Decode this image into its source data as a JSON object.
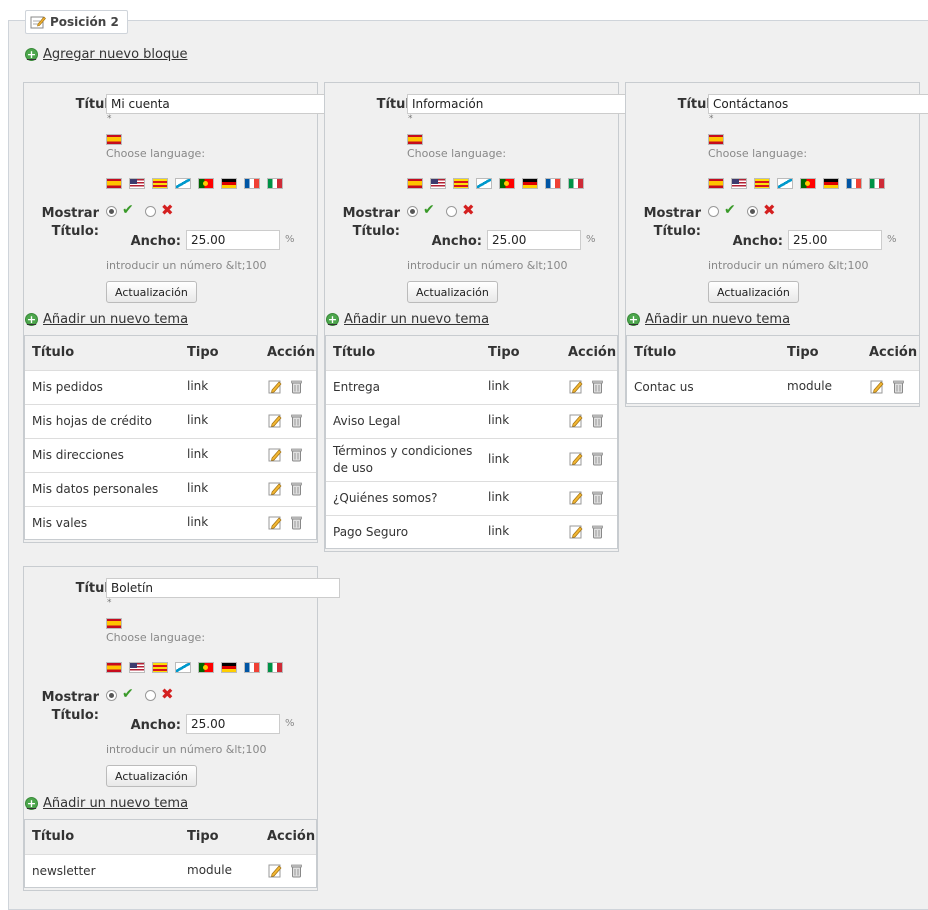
{
  "position_label": "Posición 2",
  "add_block_label": "Agregar nuevo bloque",
  "common": {
    "titulo_label": "Título:",
    "choose_language": "Choose language:",
    "mostrar_label_1": "Mostrar",
    "mostrar_label_2": "Título:",
    "ancho_label": "Ancho:",
    "percent": "%",
    "hint": "introducir un número &lt;100",
    "update_button": "Actualización",
    "add_topic": "Añadir un nuevo tema",
    "required_mark": "*",
    "col_titulo": "Título",
    "col_tipo": "Tipo",
    "col_accion": "Acción"
  },
  "flags": [
    "es",
    "us",
    "ca",
    "gl",
    "pt",
    "de",
    "fr",
    "it"
  ],
  "blocks": [
    {
      "title": "Mi cuenta",
      "show_title": true,
      "width": "25.00",
      "rows": [
        {
          "title": "Mis pedidos",
          "type": "link"
        },
        {
          "title": "Mis hojas de crédito",
          "type": "link"
        },
        {
          "title": "Mis direcciones",
          "type": "link"
        },
        {
          "title": "Mis datos personales",
          "type": "link"
        },
        {
          "title": "Mis vales",
          "type": "link"
        }
      ]
    },
    {
      "title": "Información",
      "show_title": true,
      "width": "25.00",
      "rows": [
        {
          "title": "Entrega",
          "type": "link"
        },
        {
          "title": "Aviso Legal",
          "type": "link"
        },
        {
          "title": "Términos y condiciones de uso",
          "type": "link"
        },
        {
          "title": "¿Quiénes somos?",
          "type": "link"
        },
        {
          "title": "Pago Seguro",
          "type": "link"
        }
      ]
    },
    {
      "title": "Contáctanos",
      "show_title": false,
      "width": "25.00",
      "rows": [
        {
          "title": "Contac us",
          "type": "module"
        }
      ]
    },
    {
      "title": "Boletín",
      "show_title": true,
      "width": "25.00",
      "rows": [
        {
          "title": "newsletter",
          "type": "module"
        }
      ]
    }
  ]
}
